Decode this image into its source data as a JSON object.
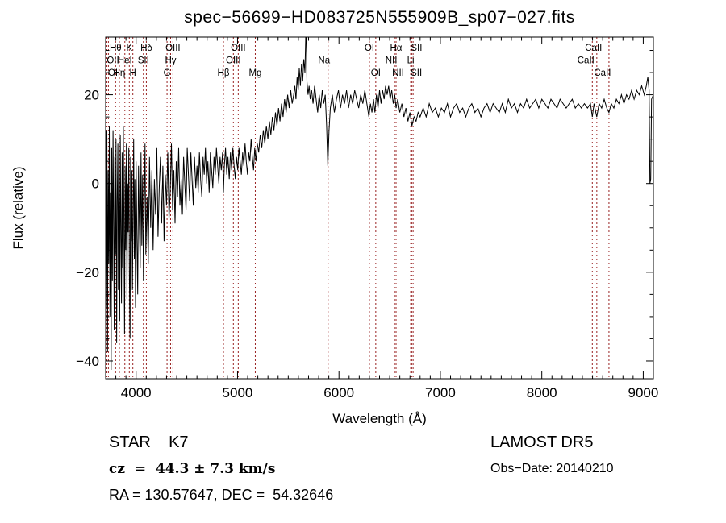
{
  "chart_data": {
    "type": "line",
    "title": "spec−56699−HD083725N555909B_sp07−027.fits",
    "xlabel": "Wavelength (Å)",
    "ylabel": "Flux (relative)",
    "xlim": [
      3700,
      9100
    ],
    "ylim": [
      -44,
      33
    ],
    "xticks": [
      4000,
      5000,
      6000,
      7000,
      8000,
      9000
    ],
    "yticks": [
      -40,
      -20,
      0,
      20
    ],
    "x_minor_step": 100,
    "y_minor_step": 5,
    "grid": false,
    "legend": "none",
    "series_color": "#000000",
    "line_marker_color": "#992222",
    "spectral_lines": [
      {
        "label": "Hθ",
        "wavelength": 3798,
        "row": 1
      },
      {
        "label": "K",
        "wavelength": 3933,
        "row": 1
      },
      {
        "label": "Hδ",
        "wavelength": 4101,
        "row": 1
      },
      {
        "label": "OIII",
        "wavelength": 4363,
        "row": 1
      },
      {
        "label": "OIII",
        "wavelength": 5007,
        "row": 1
      },
      {
        "label": "OI",
        "wavelength": 6300,
        "row": 1
      },
      {
        "label": "Hα",
        "wavelength": 6563,
        "row": 1
      },
      {
        "label": "SII",
        "wavelength": 6717,
        "row": 1,
        "dx": 6
      },
      {
        "label": "CaII",
        "wavelength": 8542,
        "row": 1,
        "dx": -4
      },
      {
        "label": "OII",
        "wavelength": 3727,
        "row": 2
      },
      {
        "label": "HeI",
        "wavelength": 3889,
        "row": 2
      },
      {
        "label": "SII",
        "wavelength": 4072,
        "row": 2
      },
      {
        "label": "Hγ",
        "wavelength": 4340,
        "row": 2
      },
      {
        "label": "OIII",
        "wavelength": 4959,
        "row": 2
      },
      {
        "label": "Na",
        "wavelength": 5893,
        "row": 2,
        "dx": -5
      },
      {
        "label": "NII",
        "wavelength": 6548,
        "row": 2,
        "dx": -4
      },
      {
        "label": "Li",
        "wavelength": 6707,
        "row": 2
      },
      {
        "label": "CaII",
        "wavelength": 8498,
        "row": 2,
        "dx": -8
      },
      {
        "label": "OI",
        "wavelength": 3712,
        "row": 3
      },
      {
        "label": "Hη",
        "wavelength": 3835,
        "row": 3
      },
      {
        "label": "H",
        "wavelength": 3968,
        "row": 3
      },
      {
        "label": "G",
        "wavelength": 4305,
        "row": 3
      },
      {
        "label": "Hβ",
        "wavelength": 4861,
        "row": 3
      },
      {
        "label": "Mg",
        "wavelength": 5175,
        "row": 3
      },
      {
        "label": "OI",
        "wavelength": 6363,
        "row": 3
      },
      {
        "label": "NII",
        "wavelength": 6583,
        "row": 3
      },
      {
        "label": "SII",
        "wavelength": 6731,
        "row": 3,
        "dx": 4
      },
      {
        "label": "CaII",
        "wavelength": 8662,
        "row": 3,
        "dx": -8
      }
    ],
    "points": [
      [
        3700,
        5
      ],
      [
        3706,
        -28
      ],
      [
        3712,
        12
      ],
      [
        3718,
        -38
      ],
      [
        3724,
        3
      ],
      [
        3730,
        -18
      ],
      [
        3736,
        13
      ],
      [
        3742,
        -30
      ],
      [
        3748,
        -2
      ],
      [
        3754,
        -42
      ],
      [
        3760,
        8
      ],
      [
        3766,
        -22
      ],
      [
        3772,
        12
      ],
      [
        3778,
        -8
      ],
      [
        3784,
        -33
      ],
      [
        3790,
        6
      ],
      [
        3796,
        -16
      ],
      [
        3802,
        10
      ],
      [
        3808,
        -36
      ],
      [
        3814,
        -4
      ],
      [
        3820,
        9
      ],
      [
        3826,
        -24
      ],
      [
        3832,
        2
      ],
      [
        3838,
        -31
      ],
      [
        3844,
        11
      ],
      [
        3850,
        -12
      ],
      [
        3856,
        -27
      ],
      [
        3862,
        7
      ],
      [
        3868,
        -19
      ],
      [
        3874,
        13
      ],
      [
        3880,
        -9
      ],
      [
        3886,
        -34
      ],
      [
        3892,
        4
      ],
      [
        3898,
        -15
      ],
      [
        3904,
        9
      ],
      [
        3910,
        -26
      ],
      [
        3916,
        0
      ],
      [
        3922,
        -11
      ],
      [
        3928,
        8
      ],
      [
        3934,
        -21
      ],
      [
        3940,
        -35
      ],
      [
        3946,
        6
      ],
      [
        3952,
        -13
      ],
      [
        3958,
        3
      ],
      [
        3964,
        -24
      ],
      [
        3970,
        -7
      ],
      [
        3976,
        10
      ],
      [
        3982,
        -17
      ],
      [
        3988,
        1
      ],
      [
        3994,
        -28
      ],
      [
        4000,
        5
      ],
      [
        4008,
        -12
      ],
      [
        4016,
        -25
      ],
      [
        4024,
        4
      ],
      [
        4032,
        -9
      ],
      [
        4040,
        -19
      ],
      [
        4048,
        7
      ],
      [
        4056,
        -14
      ],
      [
        4064,
        2
      ],
      [
        4072,
        -22
      ],
      [
        4080,
        -5
      ],
      [
        4088,
        9
      ],
      [
        4096,
        -16
      ],
      [
        4108,
        -3
      ],
      [
        4120,
        -18
      ],
      [
        4132,
        6
      ],
      [
        4144,
        -10
      ],
      [
        4156,
        3
      ],
      [
        4168,
        -15
      ],
      [
        4180,
        1
      ],
      [
        4192,
        -7
      ],
      [
        4204,
        8
      ],
      [
        4216,
        -12
      ],
      [
        4228,
        -1
      ],
      [
        4240,
        6
      ],
      [
        4252,
        -9
      ],
      [
        4264,
        4
      ],
      [
        4276,
        -13
      ],
      [
        4288,
        2
      ],
      [
        4300,
        -5
      ],
      [
        4312,
        7
      ],
      [
        4324,
        -8
      ],
      [
        4336,
        -2
      ],
      [
        4348,
        9
      ],
      [
        4360,
        -6
      ],
      [
        4372,
        3
      ],
      [
        4384,
        -9
      ],
      [
        4396,
        5
      ],
      [
        4408,
        -3
      ],
      [
        4420,
        8
      ],
      [
        4432,
        -5
      ],
      [
        4444,
        1
      ],
      [
        4456,
        -7
      ],
      [
        4468,
        6
      ],
      [
        4480,
        0
      ],
      [
        4492,
        -6
      ],
      [
        4504,
        8
      ],
      [
        4516,
        2
      ],
      [
        4528,
        -4
      ],
      [
        4540,
        7
      ],
      [
        4552,
        1
      ],
      [
        4564,
        -5
      ],
      [
        4576,
        6
      ],
      [
        4588,
        -1
      ],
      [
        4600,
        4
      ],
      [
        4612,
        -2
      ],
      [
        4624,
        7
      ],
      [
        4636,
        1
      ],
      [
        4648,
        -3
      ],
      [
        4660,
        6
      ],
      [
        4672,
        2
      ],
      [
        4684,
        8
      ],
      [
        4696,
        0
      ],
      [
        4708,
        5
      ],
      [
        4720,
        -2
      ],
      [
        4732,
        7
      ],
      [
        4744,
        3
      ],
      [
        4756,
        -1
      ],
      [
        4768,
        6
      ],
      [
        4780,
        2
      ],
      [
        4792,
        8
      ],
      [
        4804,
        4
      ],
      [
        4816,
        0
      ],
      [
        4828,
        6
      ],
      [
        4840,
        3
      ],
      [
        4852,
        7
      ],
      [
        4861,
        -2
      ],
      [
        4870,
        4
      ],
      [
        4882,
        8
      ],
      [
        4894,
        2
      ],
      [
        4906,
        6
      ],
      [
        4918,
        1
      ],
      [
        4930,
        7
      ],
      [
        4942,
        3
      ],
      [
        4954,
        8
      ],
      [
        4966,
        4
      ],
      [
        4978,
        1
      ],
      [
        4990,
        6
      ],
      [
        5002,
        3
      ],
      [
        5014,
        8
      ],
      [
        5026,
        5
      ],
      [
        5038,
        2
      ],
      [
        5050,
        7
      ],
      [
        5062,
        4
      ],
      [
        5074,
        9
      ],
      [
        5086,
        5
      ],
      [
        5098,
        2
      ],
      [
        5110,
        7
      ],
      [
        5122,
        5
      ],
      [
        5134,
        10
      ],
      [
        5146,
        6
      ],
      [
        5158,
        3
      ],
      [
        5170,
        8
      ],
      [
        5182,
        5
      ],
      [
        5194,
        9
      ],
      [
        5209,
        7
      ],
      [
        5224,
        11
      ],
      [
        5239,
        8
      ],
      [
        5254,
        12
      ],
      [
        5269,
        9
      ],
      [
        5284,
        13
      ],
      [
        5299,
        10
      ],
      [
        5314,
        14
      ],
      [
        5329,
        11
      ],
      [
        5344,
        15
      ],
      [
        5359,
        12
      ],
      [
        5374,
        16
      ],
      [
        5389,
        13
      ],
      [
        5404,
        17
      ],
      [
        5419,
        14
      ],
      [
        5434,
        18
      ],
      [
        5449,
        15
      ],
      [
        5464,
        19
      ],
      [
        5479,
        16
      ],
      [
        5494,
        20
      ],
      [
        5509,
        17
      ],
      [
        5524,
        21
      ],
      [
        5539,
        18
      ],
      [
        5554,
        20
      ],
      [
        5565,
        22
      ],
      [
        5576,
        19
      ],
      [
        5587,
        24
      ],
      [
        5598,
        21
      ],
      [
        5609,
        26
      ],
      [
        5620,
        22
      ],
      [
        5631,
        27
      ],
      [
        5642,
        23
      ],
      [
        5653,
        28
      ],
      [
        5664,
        25
      ],
      [
        5672,
        33
      ],
      [
        5678,
        33
      ],
      [
        5684,
        23
      ],
      [
        5695,
        20
      ],
      [
        5706,
        22
      ],
      [
        5717,
        19
      ],
      [
        5730,
        21
      ],
      [
        5745,
        18
      ],
      [
        5760,
        22
      ],
      [
        5775,
        19
      ],
      [
        5790,
        16
      ],
      [
        5805,
        20
      ],
      [
        5820,
        17
      ],
      [
        5835,
        21
      ],
      [
        5850,
        18
      ],
      [
        5865,
        20
      ],
      [
        5878,
        13
      ],
      [
        5890,
        4
      ],
      [
        5902,
        12
      ],
      [
        5915,
        17
      ],
      [
        5935,
        20
      ],
      [
        5955,
        16
      ],
      [
        5975,
        19
      ],
      [
        5995,
        21
      ],
      [
        6015,
        17
      ],
      [
        6035,
        20
      ],
      [
        6055,
        18
      ],
      [
        6075,
        21
      ],
      [
        6095,
        17
      ],
      [
        6115,
        20
      ],
      [
        6135,
        18
      ],
      [
        6155,
        21
      ],
      [
        6175,
        19
      ],
      [
        6195,
        17
      ],
      [
        6215,
        20
      ],
      [
        6235,
        18
      ],
      [
        6255,
        21
      ],
      [
        6275,
        18
      ],
      [
        6295,
        15
      ],
      [
        6310,
        18
      ],
      [
        6325,
        16
      ],
      [
        6340,
        19
      ],
      [
        6355,
        16
      ],
      [
        6370,
        20
      ],
      [
        6385,
        17
      ],
      [
        6400,
        21
      ],
      [
        6415,
        18
      ],
      [
        6430,
        21
      ],
      [
        6445,
        19
      ],
      [
        6460,
        22
      ],
      [
        6475,
        20
      ],
      [
        6490,
        22
      ],
      [
        6505,
        19
      ],
      [
        6520,
        21
      ],
      [
        6535,
        18
      ],
      [
        6550,
        20
      ],
      [
        6563,
        17
      ],
      [
        6580,
        19
      ],
      [
        6600,
        16
      ],
      [
        6620,
        18
      ],
      [
        6640,
        15
      ],
      [
        6660,
        17
      ],
      [
        6680,
        14
      ],
      [
        6700,
        16
      ],
      [
        6720,
        13
      ],
      [
        6740,
        15
      ],
      [
        6760,
        14
      ],
      [
        6780,
        16
      ],
      [
        6800,
        15
      ],
      [
        6830,
        17
      ],
      [
        6860,
        15
      ],
      [
        6890,
        18
      ],
      [
        6920,
        16
      ],
      [
        6950,
        17
      ],
      [
        6980,
        15
      ],
      [
        7010,
        17
      ],
      [
        7040,
        16
      ],
      [
        7070,
        18
      ],
      [
        7100,
        15
      ],
      [
        7130,
        17
      ],
      [
        7160,
        18
      ],
      [
        7190,
        16
      ],
      [
        7220,
        17
      ],
      [
        7250,
        15
      ],
      [
        7280,
        17
      ],
      [
        7310,
        18
      ],
      [
        7340,
        16
      ],
      [
        7370,
        17
      ],
      [
        7400,
        15
      ],
      [
        7430,
        17
      ],
      [
        7460,
        18
      ],
      [
        7490,
        16
      ],
      [
        7520,
        18
      ],
      [
        7550,
        17
      ],
      [
        7580,
        16
      ],
      [
        7610,
        18
      ],
      [
        7640,
        16
      ],
      [
        7670,
        19
      ],
      [
        7700,
        17
      ],
      [
        7730,
        18
      ],
      [
        7760,
        16
      ],
      [
        7790,
        18
      ],
      [
        7820,
        17
      ],
      [
        7850,
        19
      ],
      [
        7880,
        17
      ],
      [
        7910,
        18
      ],
      [
        7940,
        19
      ],
      [
        7970,
        17
      ],
      [
        8000,
        19
      ],
      [
        8030,
        18
      ],
      [
        8060,
        17
      ],
      [
        8090,
        19
      ],
      [
        8120,
        18
      ],
      [
        8150,
        17
      ],
      [
        8180,
        19
      ],
      [
        8210,
        18
      ],
      [
        8240,
        17
      ],
      [
        8270,
        18
      ],
      [
        8300,
        19
      ],
      [
        8330,
        17
      ],
      [
        8360,
        18
      ],
      [
        8390,
        17
      ],
      [
        8420,
        18
      ],
      [
        8450,
        17
      ],
      [
        8480,
        18
      ],
      [
        8498,
        15
      ],
      [
        8515,
        18
      ],
      [
        8542,
        15
      ],
      [
        8565,
        18
      ],
      [
        8590,
        17
      ],
      [
        8615,
        19
      ],
      [
        8640,
        17
      ],
      [
        8662,
        16
      ],
      [
        8685,
        18
      ],
      [
        8710,
        17
      ],
      [
        8735,
        19
      ],
      [
        8760,
        18
      ],
      [
        8785,
        20
      ],
      [
        8810,
        18
      ],
      [
        8835,
        20
      ],
      [
        8860,
        19
      ],
      [
        8885,
        21
      ],
      [
        8910,
        19
      ],
      [
        8935,
        21
      ],
      [
        8960,
        20
      ],
      [
        8985,
        22
      ],
      [
        9010,
        20
      ],
      [
        9030,
        22
      ],
      [
        9045,
        24
      ],
      [
        9058,
        21
      ],
      [
        9066,
        0
      ],
      [
        9074,
        1
      ],
      [
        9082,
        19
      ],
      [
        9100,
        20
      ]
    ]
  },
  "annotations": {
    "class_label": "STAR    K7",
    "cz": "cz  =  44.3 ± 7.3 km/s",
    "radec": "RA = 130.57647, DEC =  54.32646",
    "survey": "LAMOST DR5",
    "obs_date": "Obs−Date: 20140210"
  }
}
